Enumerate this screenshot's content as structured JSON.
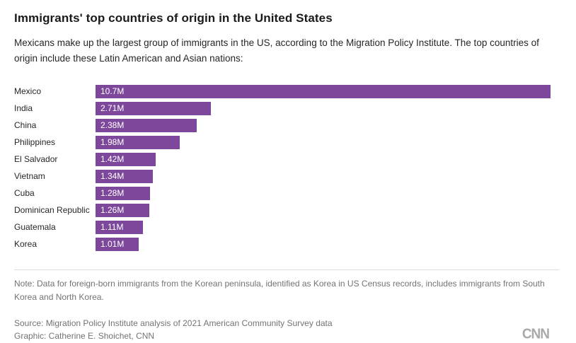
{
  "header": {
    "title": "Immigrants' top countries of origin in the United States",
    "subtitle": "Mexicans make up the largest group of immigrants in the US, according to the Migration Policy Institute. The top countries of origin include these Latin American and Asian nations:"
  },
  "chart_data": {
    "type": "bar",
    "orientation": "horizontal",
    "categories": [
      "Mexico",
      "India",
      "China",
      "Philippines",
      "El Salvador",
      "Vietnam",
      "Cuba",
      "Dominican Republic",
      "Guatemala",
      "Korea"
    ],
    "values": [
      10.7,
      2.71,
      2.38,
      1.98,
      1.42,
      1.34,
      1.28,
      1.26,
      1.11,
      1.01
    ],
    "value_labels": [
      "10.7M",
      "2.71M",
      "2.38M",
      "1.98M",
      "1.42M",
      "1.34M",
      "1.28M",
      "1.26M",
      "1.11M",
      "1.01M"
    ],
    "unit": "millions of immigrants",
    "xlim": [
      0,
      10.7
    ],
    "bar_color": "#7d489c",
    "grid": false,
    "legend": false
  },
  "footer": {
    "note": "Note: Data for foreign-born immigrants from the Korean peninsula, identified as Korea in US Census records, includes immigrants from South Korea and North Korea.",
    "source": "Source: Migration Policy Institute analysis of 2021 American Community Survey data",
    "credit": "Graphic: Catherine E. Shoichet, CNN",
    "logo_text": "CNN"
  }
}
